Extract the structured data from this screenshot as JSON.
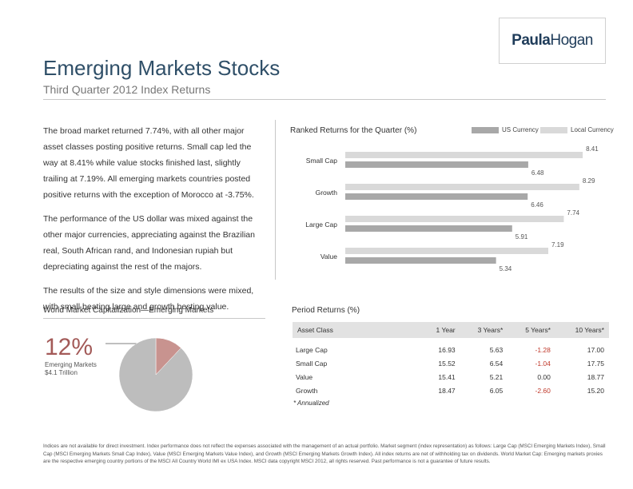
{
  "logo": {
    "part1": "Paula",
    "part2": "Hogan"
  },
  "header": {
    "title": "Emerging Markets Stocks",
    "subtitle": "Third Quarter 2012 Index Returns"
  },
  "body_paragraphs": [
    "The broad market returned 7.74%, with all other major asset classes posting positive returns. Small cap led the way at 8.41% while value stocks finished last, slightly trailing at 7.19%. All emerging markets countries posted positive returns with the exception of Morocco at -3.75%.",
    "The performance of the US dollar was mixed against the other major currencies, appreciating against the Brazilian real, South African rand, and Indonesian rupiah but depreciating against the rest of the majors.",
    "The results of the size and style dimensions were mixed, with small beating large and growth besting value."
  ],
  "chart_data": [
    {
      "type": "bar",
      "title": "Ranked Returns for the Quarter (%)",
      "categories": [
        "Small Cap",
        "Growth",
        "Large Cap",
        "Value"
      ],
      "series": [
        {
          "name": "Local Currency",
          "color": "#d9d9d9",
          "values": [
            8.41,
            8.29,
            7.74,
            7.19
          ]
        },
        {
          "name": "US Currency",
          "color": "#a8a8a8",
          "values": [
            6.48,
            6.46,
            5.91,
            5.34
          ]
        }
      ],
      "xlim": [
        0,
        9.2
      ],
      "legend": "top-right"
    },
    {
      "type": "pie",
      "title": "World Market Capitalization—Emerging Markets",
      "highlight_percent": "12%",
      "highlight_label": "Emerging Markets",
      "highlight_value": "$4.1 Trillion",
      "slices": [
        {
          "value": 12,
          "color": "#c8938f"
        },
        {
          "value": 88,
          "color": "#bdbdbd"
        }
      ]
    },
    {
      "type": "table",
      "title": "Period Returns (%)",
      "columns": [
        "Asset Class",
        "1 Year",
        "3 Years*",
        "5 Years*",
        "10 Years*"
      ],
      "rows": [
        [
          "Large Cap",
          "16.93",
          "5.63",
          "-1.28",
          "17.00"
        ],
        [
          "Small Cap",
          "15.52",
          "6.54",
          "-1.04",
          "17.75"
        ],
        [
          "Value",
          "15.41",
          "5.21",
          "0.00",
          "18.77"
        ],
        [
          "Growth",
          "18.47",
          "6.05",
          "-2.60",
          "15.20"
        ]
      ],
      "footnote": "* Annualized"
    }
  ],
  "disclaimer": "Indices are not available for direct investment. Index performance does not reflect the expenses associated with the management of an actual portfolio. Market segment (index representation) as follows: Large Cap (MSCI Emerging Markets Index), Small Cap (MSCI Emerging Markets Small Cap Index), Value (MSCI Emerging Markets Value Index), and Growth (MSCI Emerging Markets Growth Index). All index returns are net of withholding tax on dividends. World Market Cap: Emerging markets proxies are the respective emerging country portions of the MSCI All Country World IMI ex USA Index. MSCI data copyright MSCI 2012, all rights reserved. Past performance is not a guarantee of future results.",
  "colors": {
    "title": "#2f4f68",
    "accent": "#a35a58",
    "negative": "#c0392b"
  }
}
